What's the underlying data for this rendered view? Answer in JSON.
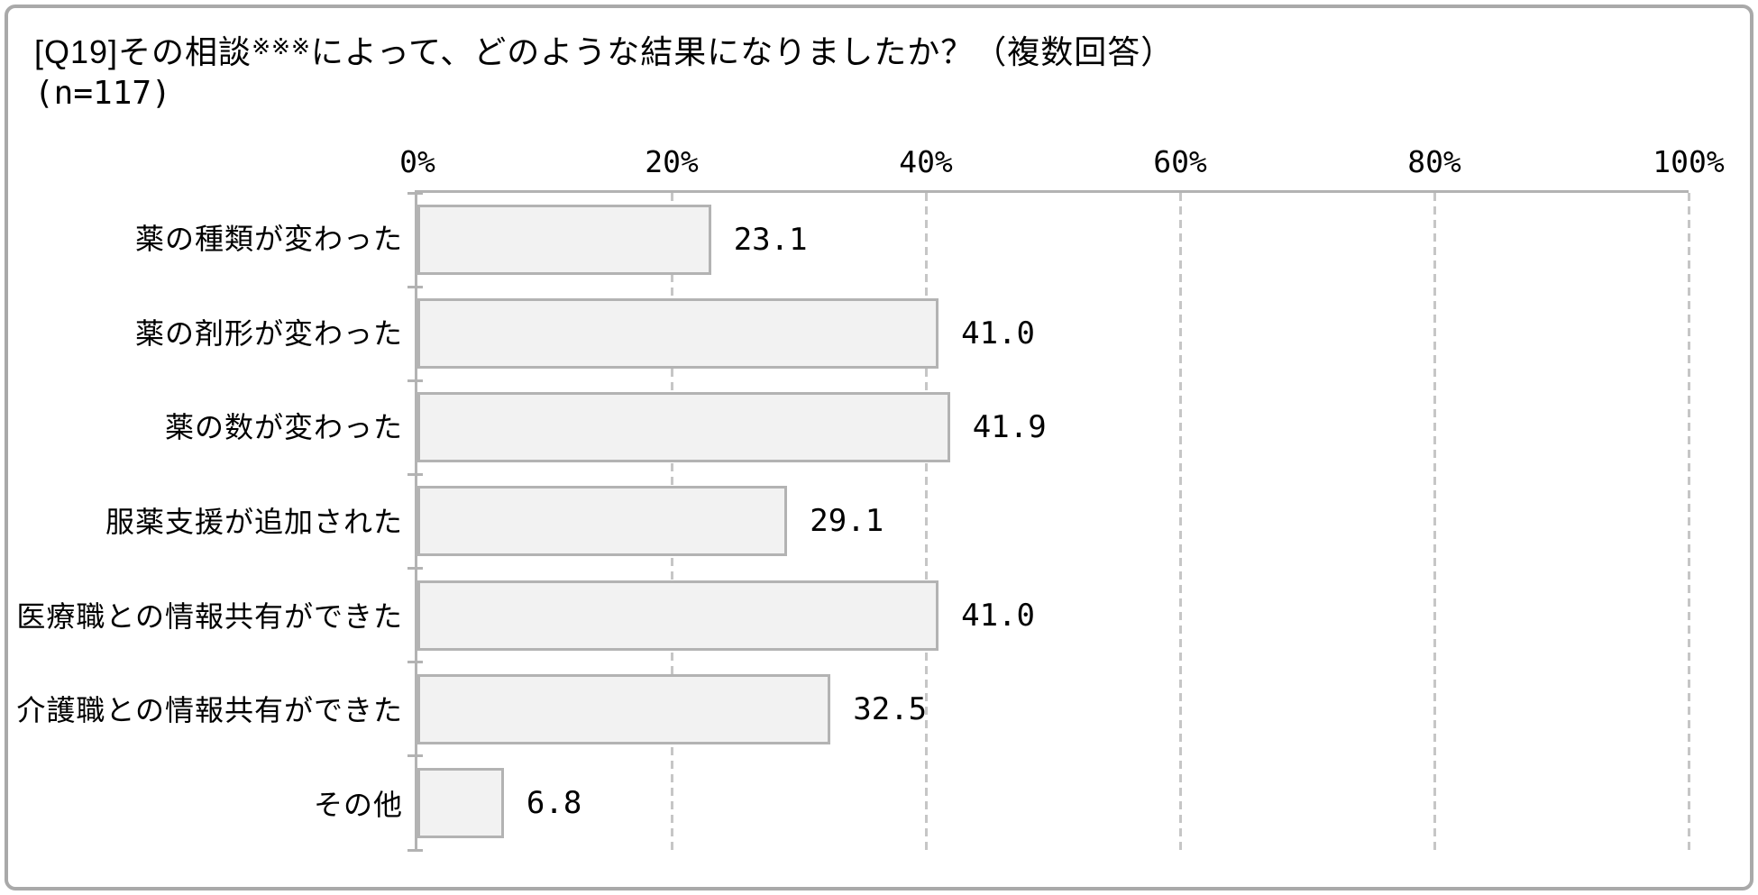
{
  "title": {
    "line1_prefix": "[Q19]その相談",
    "line1_superscript": "※※※",
    "line1_suffix": "によって、どのような結果になりましたか？（複数回答）",
    "line2": "(n=117)"
  },
  "chart_data": {
    "type": "bar",
    "orientation": "horizontal",
    "title": "[Q19]その相談※※※によって、どのような結果になりましたか？（複数回答）",
    "sample_size": "(n=117)",
    "categories": [
      "薬の種類が変わった",
      "薬の剤形が変わった",
      "薬の数が変わった",
      "服薬支援が追加された",
      "医療職との情報共有ができた",
      "介護職との情報共有ができた",
      "その他"
    ],
    "values": [
      23.1,
      41.0,
      41.9,
      29.1,
      41.0,
      32.5,
      6.8
    ],
    "value_labels": [
      "23.1",
      "41.0",
      "41.9",
      "29.1",
      "41.0",
      "32.5",
      "6.8"
    ],
    "x_axis": {
      "tick_labels": [
        "0%",
        "20%",
        "40%",
        "60%",
        "80%",
        "100%"
      ],
      "tick_percents": [
        0,
        20,
        40,
        60,
        80,
        100
      ],
      "min": 0,
      "max": 100,
      "gridlines": "dashed-vertical",
      "position": "top"
    },
    "legend": "none"
  },
  "colors": {
    "bar_fill": "#f2f2f2",
    "bar_border": "#b3b3b3",
    "axis_line": "#b3b3b3",
    "gridline": "#c6c6c6",
    "outer_border": "#a9a9a9",
    "text": "#000000",
    "background": "#ffffff"
  }
}
